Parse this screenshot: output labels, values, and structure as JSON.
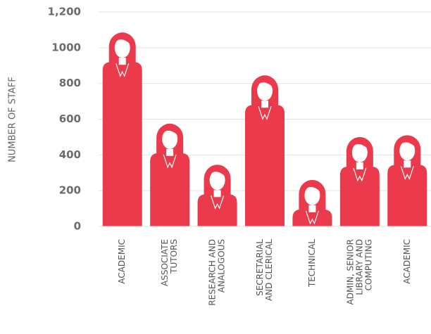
{
  "chart_data": {
    "type": "pictograph",
    "y_label": "NUMBER OF STAFF",
    "categories": [
      [
        "ACADEMIC"
      ],
      [
        "ASSOCIATE",
        "TUTORS"
      ],
      [
        "RESEARCH AND",
        "ANALOGOUS"
      ],
      [
        "SECRETARIAL",
        "AND CLERICAL"
      ],
      [
        "TECHNICAL"
      ],
      [
        "ADMIN, SENIOR",
        "LIBRARY AND",
        "COMPUTING"
      ],
      [
        "ACADEMIC"
      ]
    ],
    "values": [
      920,
      410,
      180,
      680,
      95,
      335,
      345
    ],
    "color": "#ea3a4b",
    "ylim": [
      0,
      1200
    ],
    "yticks": [
      0,
      200,
      400,
      600,
      800,
      1000,
      {
        "value": 1200,
        "label": "1,200"
      }
    ],
    "grid": true
  }
}
